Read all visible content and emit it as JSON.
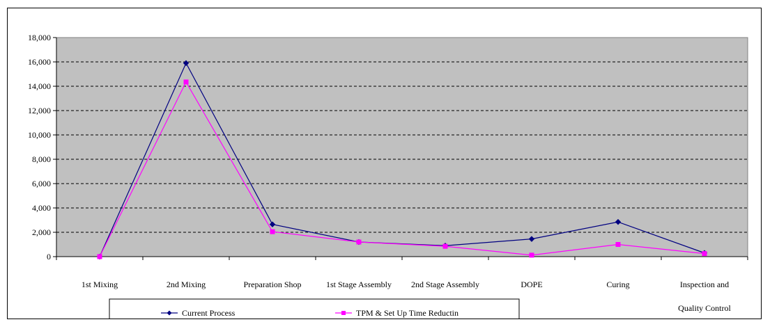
{
  "chart_data": {
    "type": "line",
    "categories": [
      [
        "1st Mixing"
      ],
      [
        "2nd Mixing"
      ],
      [
        "Preparation Shop"
      ],
      [
        "1st Stage Assembly"
      ],
      [
        "2nd Stage Assembly"
      ],
      [
        "DOPE"
      ],
      [
        "Curing"
      ],
      [
        "Inspection and",
        "Quality Control"
      ]
    ],
    "series": [
      {
        "name": "Current Process",
        "color": "#000080",
        "marker": "diamond",
        "values": [
          0,
          15900,
          2650,
          1200,
          900,
          1450,
          2850,
          300
        ]
      },
      {
        "name": "TPM & Set Up Time Reductin",
        "color": "#ff00ff",
        "marker": "square",
        "values": [
          0,
          14350,
          2050,
          1200,
          850,
          120,
          1000,
          250
        ]
      }
    ],
    "ylim": [
      0,
      18000
    ],
    "yticks": [
      "0",
      "2,000",
      "4,000",
      "6,000",
      "8,000",
      "10,000",
      "12,000",
      "14,000",
      "16,000",
      "18,000"
    ],
    "grid": true,
    "plot_background": "#c0c0c0",
    "legend_position": "bottom"
  }
}
